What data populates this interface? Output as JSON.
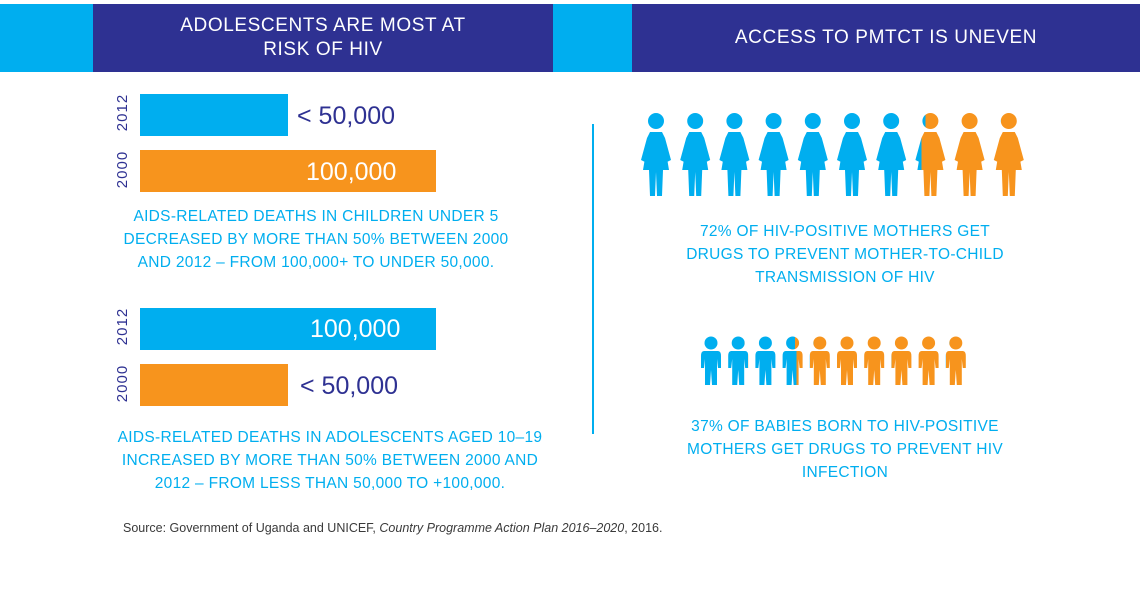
{
  "header_left": {
    "line1": "ADOLESCENTS ARE MOST AT",
    "line2": "RISK OF HIV"
  },
  "header_right": {
    "title": "ACCESS TO PMTCT IS UNEVEN"
  },
  "colors": {
    "cyan": "#00aeef",
    "orange": "#f7941d",
    "navy": "#2e3192"
  },
  "chart_data": [
    {
      "type": "bar",
      "orientation": "horizontal",
      "categories": [
        "2012",
        "2000"
      ],
      "values": [
        50000,
        100000
      ],
      "value_labels": [
        "< 50,000",
        "100,000"
      ],
      "colors": [
        "#00aeef",
        "#f7941d"
      ],
      "caption": [
        "AIDS-RELATED DEATHS IN CHILDREN UNDER 5",
        "DECREASED BY MORE THAN 50% BETWEEN 2000",
        "AND 2012 – FROM 100,000+ TO UNDER 50,000."
      ]
    },
    {
      "type": "bar",
      "orientation": "horizontal",
      "categories": [
        "2012",
        "2000"
      ],
      "values": [
        100000,
        50000
      ],
      "value_labels": [
        "100,000",
        "< 50,000"
      ],
      "colors": [
        "#00aeef",
        "#f7941d"
      ],
      "caption": [
        "AIDS-RELATED DEATHS IN ADOLESCENTS AGED 10–19",
        "INCREASED BY MORE THAN 50% BETWEEN 2000 AND",
        "2012 – FROM LESS THAN 50,000 TO +100,000."
      ]
    },
    {
      "type": "pictogram",
      "icon": "woman-icon",
      "total": 10,
      "filled": 7.2,
      "filled_color": "#00aeef",
      "rest_color": "#f7941d",
      "caption": [
        "72% OF HIV-POSITIVE MOTHERS GET",
        "DRUGS TO PREVENT MOTHER-TO-CHILD",
        "TRANSMISSION OF HIV"
      ]
    },
    {
      "type": "pictogram",
      "icon": "child-icon",
      "total": 10,
      "filled": 3.7,
      "filled_color": "#00aeef",
      "rest_color": "#f7941d",
      "caption": [
        "37% OF BABIES BORN TO HIV-POSITIVE",
        "MOTHERS GET DRUGS TO PREVENT HIV",
        "INFECTION"
      ]
    }
  ],
  "source": {
    "prefix": "Source: Government of Uganda and UNICEF, ",
    "title": "Country Programme Action Plan 2016–2020",
    "suffix": ", 2016."
  }
}
